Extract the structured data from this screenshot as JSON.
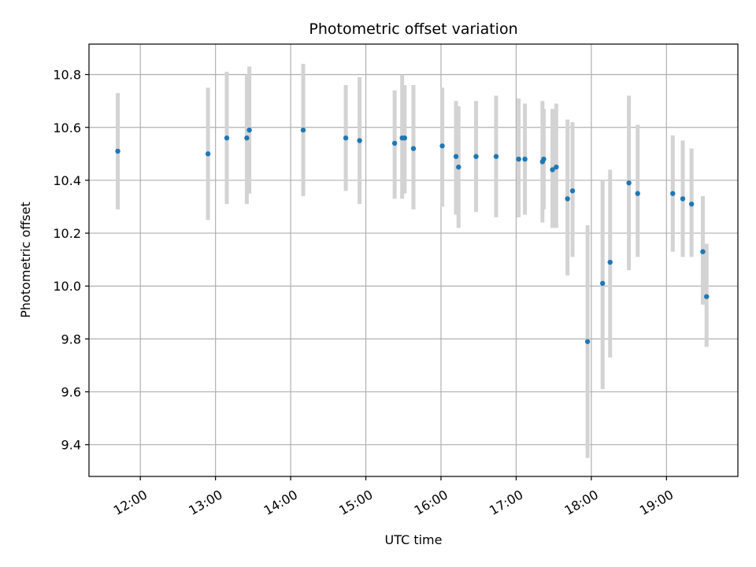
{
  "chart_data": {
    "type": "scatter",
    "title": "Photometric offset variation",
    "xlabel": "UTC time",
    "ylabel": "Photometric offset",
    "grid": true,
    "x_range": [
      "11:19",
      "19:57"
    ],
    "ylim": [
      9.28,
      10.915
    ],
    "x_ticks": [
      "12:00",
      "13:00",
      "14:00",
      "15:00",
      "16:00",
      "17:00",
      "18:00",
      "19:00"
    ],
    "y_ticks": [
      "9.4",
      "9.6",
      "9.8",
      "10.0",
      "10.2",
      "10.4",
      "10.6",
      "10.8"
    ],
    "colors": {
      "points": "#1f77b4",
      "error_bars": "#d3d3d3",
      "grid": "#b0b0b0"
    },
    "points": [
      {
        "x": "11:42",
        "y": 10.51,
        "ylo": 10.29,
        "yhi": 10.73
      },
      {
        "x": "12:54",
        "y": 10.5,
        "ylo": 10.25,
        "yhi": 10.75
      },
      {
        "x": "13:09",
        "y": 10.56,
        "ylo": 10.31,
        "yhi": 10.81
      },
      {
        "x": "13:25",
        "y": 10.56,
        "ylo": 10.31,
        "yhi": 10.8
      },
      {
        "x": "13:27",
        "y": 10.59,
        "ylo": 10.35,
        "yhi": 10.83
      },
      {
        "x": "14:10",
        "y": 10.59,
        "ylo": 10.34,
        "yhi": 10.84
      },
      {
        "x": "14:44",
        "y": 10.56,
        "ylo": 10.36,
        "yhi": 10.76
      },
      {
        "x": "14:55",
        "y": 10.55,
        "ylo": 10.31,
        "yhi": 10.79
      },
      {
        "x": "15:23",
        "y": 10.54,
        "ylo": 10.33,
        "yhi": 10.74
      },
      {
        "x": "15:29",
        "y": 10.56,
        "ylo": 10.33,
        "yhi": 10.8
      },
      {
        "x": "15:31",
        "y": 10.56,
        "ylo": 10.35,
        "yhi": 10.76
      },
      {
        "x": "15:38",
        "y": 10.52,
        "ylo": 10.29,
        "yhi": 10.76
      },
      {
        "x": "16:01",
        "y": 10.53,
        "ylo": 10.3,
        "yhi": 10.75
      },
      {
        "x": "16:12",
        "y": 10.49,
        "ylo": 10.27,
        "yhi": 10.7
      },
      {
        "x": "16:14",
        "y": 10.45,
        "ylo": 10.22,
        "yhi": 10.68
      },
      {
        "x": "16:28",
        "y": 10.49,
        "ylo": 10.28,
        "yhi": 10.7
      },
      {
        "x": "16:44",
        "y": 10.49,
        "ylo": 10.26,
        "yhi": 10.72
      },
      {
        "x": "17:02",
        "y": 10.48,
        "ylo": 10.26,
        "yhi": 10.71
      },
      {
        "x": "17:07",
        "y": 10.48,
        "ylo": 10.27,
        "yhi": 10.69
      },
      {
        "x": "17:21",
        "y": 10.47,
        "ylo": 10.24,
        "yhi": 10.7
      },
      {
        "x": "17:22",
        "y": 10.48,
        "ylo": 10.29,
        "yhi": 10.67
      },
      {
        "x": "17:29",
        "y": 10.44,
        "ylo": 10.22,
        "yhi": 10.67
      },
      {
        "x": "17:32",
        "y": 10.45,
        "ylo": 10.22,
        "yhi": 10.69
      },
      {
        "x": "17:41",
        "y": 10.33,
        "ylo": 10.04,
        "yhi": 10.63
      },
      {
        "x": "17:45",
        "y": 10.36,
        "ylo": 10.11,
        "yhi": 10.62
      },
      {
        "x": "17:57",
        "y": 9.79,
        "ylo": 9.35,
        "yhi": 10.23
      },
      {
        "x": "18:09",
        "y": 10.01,
        "ylo": 9.61,
        "yhi": 10.4
      },
      {
        "x": "18:15",
        "y": 10.09,
        "ylo": 9.73,
        "yhi": 10.44
      },
      {
        "x": "18:30",
        "y": 10.39,
        "ylo": 10.06,
        "yhi": 10.72
      },
      {
        "x": "18:37",
        "y": 10.35,
        "ylo": 10.11,
        "yhi": 10.61
      },
      {
        "x": "19:05",
        "y": 10.35,
        "ylo": 10.13,
        "yhi": 10.57
      },
      {
        "x": "19:13",
        "y": 10.33,
        "ylo": 10.11,
        "yhi": 10.55
      },
      {
        "x": "19:20",
        "y": 10.31,
        "ylo": 10.11,
        "yhi": 10.52
      },
      {
        "x": "19:29",
        "y": 10.13,
        "ylo": 9.93,
        "yhi": 10.34
      },
      {
        "x": "19:32",
        "y": 9.96,
        "ylo": 9.77,
        "yhi": 10.16
      }
    ]
  }
}
